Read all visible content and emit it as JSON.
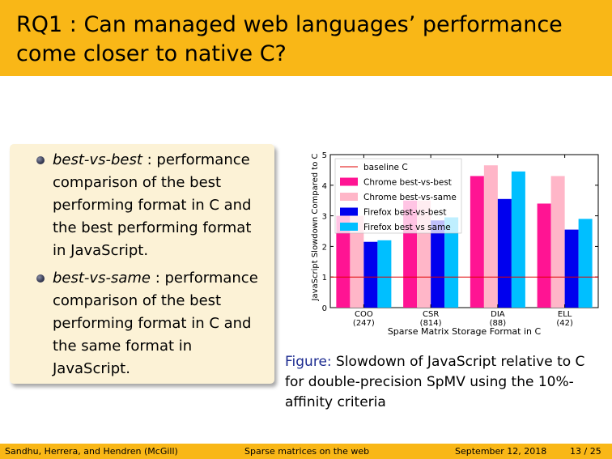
{
  "slide": {
    "title": "RQ1 : Can managed web languages’ performance come closer to native C?"
  },
  "block": {
    "items": [
      {
        "term": "best-vs-best",
        "text": " : performance comparison of the best performing format in C and the best performing format in JavaScript."
      },
      {
        "term": "best-vs-same",
        "text": " : performance comparison of the best performing format in C and the same format in JavaScript."
      }
    ]
  },
  "figure": {
    "label": "Figure:",
    "caption": " Slowdown of JavaScript relative to C for double-precision SpMV using the 10%-affinity criteria"
  },
  "chart_data": {
    "type": "bar",
    "xlabel": "Sparse Matrix Storage Format in C",
    "ylabel": "JavaScript Slowdown Compared to C",
    "ylim": [
      0,
      5
    ],
    "yticks": [
      "0",
      "1",
      "2",
      "3",
      "4",
      "5"
    ],
    "categories": [
      "COO",
      "CSR",
      "DIA",
      "ELL"
    ],
    "category_counts": [
      "(247)",
      "(814)",
      "(88)",
      "(42)"
    ],
    "baseline": {
      "name": "baseline C",
      "value": 1,
      "color": "#e00000"
    },
    "legend_position": "top-left",
    "series": [
      {
        "name": "Chrome best-vs-best",
        "color": "#ff1493",
        "values": [
          3.0,
          3.5,
          4.3,
          3.4
        ]
      },
      {
        "name": "Chrome best-vs-same",
        "color": "#ffb6c8",
        "values": [
          3.0,
          3.5,
          4.65,
          4.3
        ]
      },
      {
        "name": "Firefox best-vs-best",
        "color": "#0000ee",
        "values": [
          2.15,
          2.85,
          3.55,
          2.55
        ]
      },
      {
        "name": "Firefox best vs same",
        "color": "#00bfff",
        "values": [
          2.2,
          2.95,
          4.45,
          2.9
        ]
      }
    ]
  },
  "footer": {
    "authors": "Sandhu, Herrera, and Hendren  (McGill)",
    "short_title": "Sparse matrices on the web",
    "date": "September 12, 2018",
    "page": "13 / 25"
  }
}
